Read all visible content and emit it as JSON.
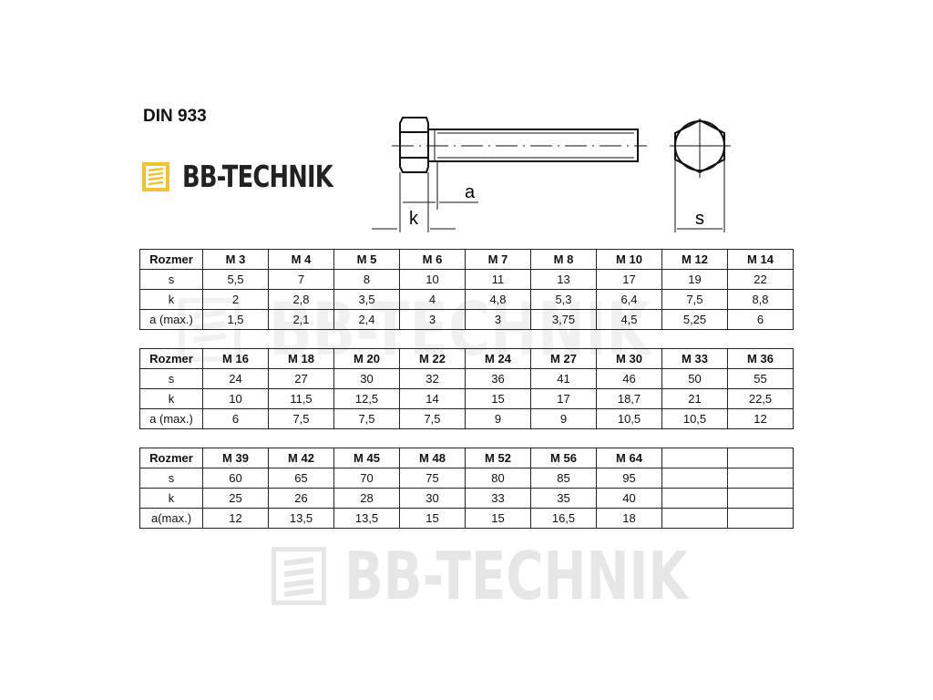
{
  "title": "DIN 933",
  "logo": {
    "text": "BB-TECHNIK",
    "color": "#f2c230"
  },
  "watermark": "BB-TECHNIK",
  "drawing": {
    "labels": {
      "a": "a",
      "k": "k",
      "s": "s"
    }
  },
  "tables": [
    {
      "header": [
        "Rozmer",
        "M 3",
        "M 4",
        "M 5",
        "M 6",
        "M 7",
        "M 8",
        "M 10",
        "M 12",
        "M 14"
      ],
      "rows": [
        [
          "s",
          "5,5",
          "7",
          "8",
          "10",
          "11",
          "13",
          "17",
          "19",
          "22"
        ],
        [
          "k",
          "2",
          "2,8",
          "3,5",
          "4",
          "4,8",
          "5,3",
          "6,4",
          "7,5",
          "8,8"
        ],
        [
          "a (max.)",
          "1,5",
          "2,1",
          "2,4",
          "3",
          "3",
          "3,75",
          "4,5",
          "5,25",
          "6"
        ]
      ]
    },
    {
      "header": [
        "Rozmer",
        "M 16",
        "M 18",
        "M 20",
        "M 22",
        "M 24",
        "M 27",
        "M 30",
        "M 33",
        "M 36"
      ],
      "rows": [
        [
          "s",
          "24",
          "27",
          "30",
          "32",
          "36",
          "41",
          "46",
          "50",
          "55"
        ],
        [
          "k",
          "10",
          "11,5",
          "12,5",
          "14",
          "15",
          "17",
          "18,7",
          "21",
          "22,5"
        ],
        [
          "a (max.)",
          "6",
          "7,5",
          "7,5",
          "7,5",
          "9",
          "9",
          "10,5",
          "10,5",
          "12"
        ]
      ]
    },
    {
      "header": [
        "Rozmer",
        "M 39",
        "M 42",
        "M 45",
        "M 48",
        "M 52",
        "M 56",
        "M 64",
        "",
        ""
      ],
      "rows": [
        [
          "s",
          "60",
          "65",
          "70",
          "75",
          "80",
          "85",
          "95",
          "",
          ""
        ],
        [
          "k",
          "25",
          "26",
          "28",
          "30",
          "33",
          "35",
          "40",
          "",
          ""
        ],
        [
          "a(max.)",
          "12",
          "13,5",
          "13,5",
          "15",
          "15",
          "16,5",
          "18",
          "",
          ""
        ]
      ]
    }
  ]
}
